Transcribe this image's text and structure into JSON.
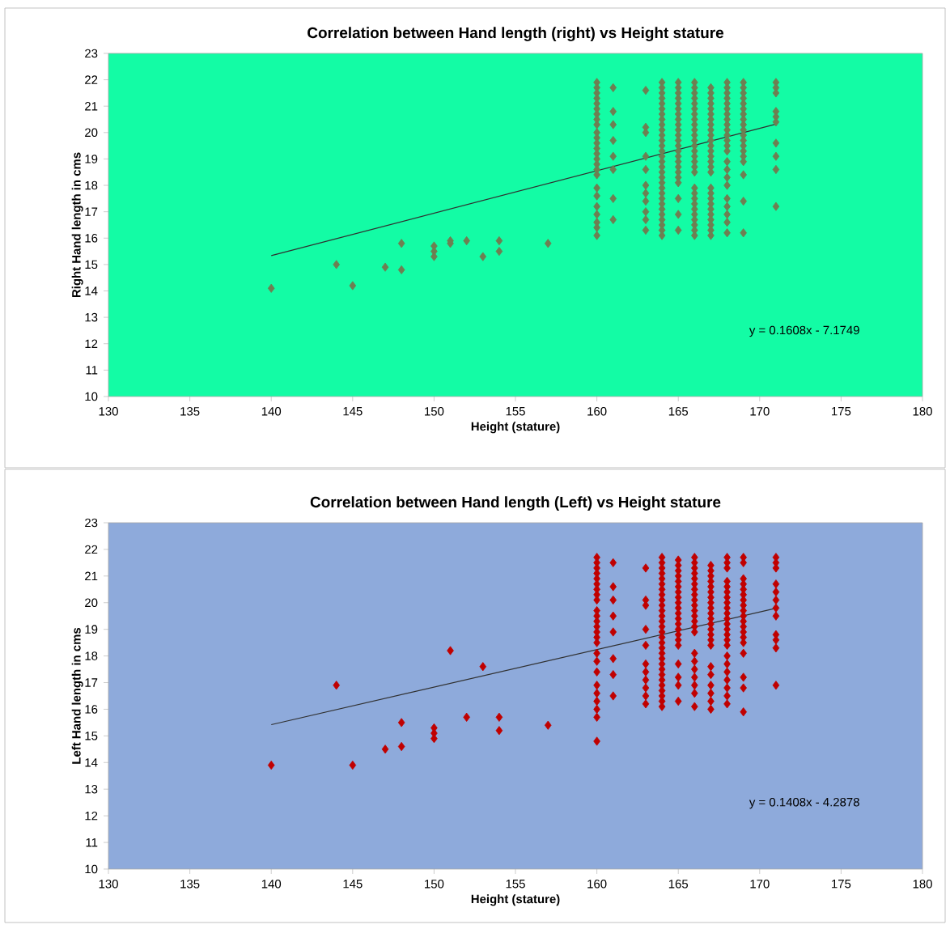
{
  "chart_data": [
    {
      "type": "scatter",
      "title": "Correlation between Hand length (right) vs Height stature",
      "xlabel": "Height (stature)",
      "ylabel": "Right Hand length in cms",
      "xlim": [
        130,
        180
      ],
      "xticks": [
        130,
        135,
        140,
        145,
        150,
        155,
        160,
        165,
        170,
        175,
        180
      ],
      "ylim": [
        10,
        23
      ],
      "yticks": [
        10,
        11,
        12,
        13,
        14,
        15,
        16,
        17,
        18,
        19,
        20,
        21,
        22,
        23
      ],
      "marker": "diamond",
      "grid": false,
      "annotations": [
        "y = 0.1608x - 7.1749"
      ],
      "series": [
        {
          "color": "#6e7f52",
          "x": [
            140,
            144,
            145,
            147,
            148,
            148,
            150,
            150,
            150,
            151,
            151,
            152,
            153,
            154,
            154,
            157
          ],
          "values": [
            14.1,
            15.0,
            14.2,
            14.9,
            15.8,
            14.8,
            15.7,
            15.5,
            15.3,
            15.9,
            15.8,
            15.9,
            15.3,
            15.9,
            15.5,
            15.8
          ]
        },
        {
          "color": "#6e7f52",
          "x": [
            160,
            160,
            160,
            160,
            160,
            160,
            160,
            160,
            160,
            160,
            160,
            160,
            160,
            160,
            160,
            160,
            160,
            160,
            160,
            160,
            160,
            160,
            160,
            160,
            160
          ],
          "values": [
            21.9,
            21.7,
            21.5,
            21.3,
            21.1,
            20.9,
            20.7,
            20.5,
            20.3,
            20.0,
            19.8,
            19.6,
            19.4,
            19.2,
            19.0,
            18.8,
            18.6,
            18.4,
            17.9,
            17.6,
            17.2,
            16.9,
            16.6,
            16.4,
            16.1
          ]
        },
        {
          "color": "#6e7f52",
          "x": [
            161,
            161,
            161,
            161,
            161,
            161,
            161,
            161
          ],
          "values": [
            21.7,
            20.8,
            20.3,
            19.7,
            19.1,
            18.6,
            17.5,
            16.7
          ]
        },
        {
          "color": "#6e7f52",
          "x": [
            163,
            163,
            163,
            163,
            163,
            163,
            163,
            163,
            163,
            163,
            163
          ],
          "values": [
            21.6,
            20.2,
            20.0,
            19.1,
            18.6,
            18.0,
            17.7,
            17.4,
            17.0,
            16.7,
            16.3
          ]
        },
        {
          "color": "#6e7f52",
          "x": [
            164,
            164,
            164,
            164,
            164,
            164,
            164,
            164,
            164,
            164,
            164,
            164,
            164,
            164,
            164,
            164,
            164,
            164,
            164,
            164,
            164,
            164,
            164,
            164,
            164,
            164,
            164,
            164,
            164,
            164
          ],
          "values": [
            21.9,
            21.7,
            21.5,
            21.3,
            21.1,
            20.9,
            20.7,
            20.5,
            20.3,
            20.1,
            19.9,
            19.7,
            19.5,
            19.3,
            19.1,
            18.9,
            18.7,
            18.5,
            18.3,
            18.1,
            17.9,
            17.7,
            17.5,
            17.3,
            17.1,
            16.9,
            16.7,
            16.5,
            16.3,
            16.1
          ]
        },
        {
          "color": "#6e7f52",
          "x": [
            165,
            165,
            165,
            165,
            165,
            165,
            165,
            165,
            165,
            165,
            165,
            165,
            165,
            165,
            165,
            165,
            165,
            165,
            165,
            165,
            165,
            165,
            165
          ],
          "values": [
            21.9,
            21.7,
            21.5,
            21.3,
            21.1,
            20.9,
            20.7,
            20.5,
            20.3,
            20.1,
            19.9,
            19.7,
            19.5,
            19.3,
            19.1,
            18.9,
            18.7,
            18.5,
            18.3,
            18.1,
            17.5,
            16.9,
            16.3
          ]
        },
        {
          "color": "#6e7f52",
          "x": [
            166,
            166,
            166,
            166,
            166,
            166,
            166,
            166,
            166,
            166,
            166,
            166,
            166,
            166,
            166,
            166,
            166,
            166,
            166,
            166,
            166,
            166,
            166,
            166,
            166,
            166,
            166,
            166
          ],
          "values": [
            21.9,
            21.7,
            21.5,
            21.3,
            21.1,
            20.9,
            20.7,
            20.5,
            20.3,
            20.1,
            19.9,
            19.7,
            19.5,
            19.3,
            19.1,
            18.9,
            18.7,
            18.5,
            17.9,
            17.7,
            17.5,
            17.3,
            17.1,
            16.9,
            16.7,
            16.5,
            16.3,
            16.1
          ]
        },
        {
          "color": "#6e7f52",
          "x": [
            167,
            167,
            167,
            167,
            167,
            167,
            167,
            167,
            167,
            167,
            167,
            167,
            167,
            167,
            167,
            167,
            167,
            167,
            167,
            167,
            167,
            167,
            167,
            167,
            167,
            167,
            167
          ],
          "values": [
            21.7,
            21.5,
            21.3,
            21.1,
            20.9,
            20.7,
            20.5,
            20.3,
            20.1,
            19.9,
            19.7,
            19.5,
            19.3,
            19.1,
            18.9,
            18.7,
            18.5,
            17.9,
            17.7,
            17.5,
            17.3,
            17.1,
            16.9,
            16.7,
            16.5,
            16.3,
            16.1
          ]
        },
        {
          "color": "#6e7f52",
          "x": [
            168,
            168,
            168,
            168,
            168,
            168,
            168,
            168,
            168,
            168,
            168,
            168,
            168,
            168,
            168,
            168,
            168,
            168,
            168,
            168,
            168,
            168,
            168
          ],
          "values": [
            21.9,
            21.7,
            21.5,
            21.3,
            21.1,
            20.9,
            20.7,
            20.5,
            20.3,
            20.1,
            19.9,
            19.7,
            19.5,
            19.3,
            18.9,
            18.6,
            18.3,
            18.0,
            17.5,
            17.2,
            16.9,
            16.6,
            16.2
          ]
        },
        {
          "color": "#6e7f52",
          "x": [
            169,
            169,
            169,
            169,
            169,
            169,
            169,
            169,
            169,
            169,
            169,
            169,
            169,
            169,
            169,
            169,
            169,
            169,
            169
          ],
          "values": [
            21.9,
            21.7,
            21.5,
            21.3,
            21.1,
            20.9,
            20.7,
            20.5,
            20.3,
            20.1,
            19.9,
            19.7,
            19.5,
            19.3,
            19.1,
            18.9,
            18.4,
            17.4,
            16.2
          ]
        },
        {
          "color": "#6e7f52",
          "x": [
            171,
            171,
            171,
            171,
            171,
            171,
            171,
            171,
            171,
            171
          ],
          "values": [
            21.9,
            21.7,
            21.5,
            20.8,
            20.6,
            20.4,
            19.6,
            19.1,
            18.6,
            17.2
          ]
        },
        {
          "type": "line",
          "marker": "none",
          "color": "#303030",
          "x": [
            140,
            171
          ],
          "values": [
            15.34,
            20.32
          ]
        }
      ]
    },
    {
      "type": "scatter",
      "title": "Correlation between Hand length (Left) vs Height stature",
      "xlabel": "Height (stature)",
      "ylabel": "Left Hand length in cms",
      "xlim": [
        130,
        180
      ],
      "xticks": [
        130,
        135,
        140,
        145,
        150,
        155,
        160,
        165,
        170,
        175,
        180
      ],
      "ylim": [
        10,
        23
      ],
      "yticks": [
        10,
        11,
        12,
        13,
        14,
        15,
        16,
        17,
        18,
        19,
        20,
        21,
        22,
        23
      ],
      "marker": "diamond",
      "grid": false,
      "annotations": [
        "y = 0.1408x - 4.2878"
      ],
      "series": [
        {
          "color": "#c00000",
          "x": [
            140,
            144,
            145,
            147,
            148,
            148,
            150,
            150,
            150,
            151,
            152,
            153,
            154,
            154,
            157
          ],
          "values": [
            13.9,
            16.9,
            13.9,
            14.5,
            14.6,
            15.5,
            15.3,
            15.1,
            14.9,
            18.2,
            15.7,
            17.6,
            15.7,
            15.2,
            15.4
          ]
        },
        {
          "color": "#c00000",
          "x": [
            160,
            160,
            160,
            160,
            160,
            160,
            160,
            160,
            160,
            160,
            160,
            160,
            160,
            160,
            160,
            160,
            160,
            160,
            160,
            160,
            160,
            160,
            160,
            160,
            160
          ],
          "values": [
            21.7,
            21.5,
            21.3,
            21.1,
            20.9,
            20.7,
            20.5,
            20.3,
            20.1,
            19.7,
            19.5,
            19.3,
            19.1,
            18.9,
            18.7,
            18.5,
            18.1,
            17.8,
            17.4,
            16.9,
            16.6,
            16.3,
            16.0,
            15.7,
            14.8
          ]
        },
        {
          "color": "#c00000",
          "x": [
            161,
            161,
            161,
            161,
            161,
            161,
            161,
            161
          ],
          "values": [
            21.5,
            20.6,
            20.1,
            19.5,
            18.9,
            17.9,
            17.3,
            16.5
          ]
        },
        {
          "color": "#c00000",
          "x": [
            163,
            163,
            163,
            163,
            163,
            163,
            163,
            163,
            163,
            163,
            163
          ],
          "values": [
            21.3,
            20.1,
            19.9,
            19.0,
            18.4,
            17.7,
            17.4,
            17.1,
            16.8,
            16.5,
            16.2
          ]
        },
        {
          "color": "#c00000",
          "x": [
            164,
            164,
            164,
            164,
            164,
            164,
            164,
            164,
            164,
            164,
            164,
            164,
            164,
            164,
            164,
            164,
            164,
            164,
            164,
            164,
            164,
            164,
            164,
            164,
            164,
            164,
            164,
            164,
            164
          ],
          "values": [
            21.7,
            21.5,
            21.3,
            21.1,
            20.9,
            20.7,
            20.5,
            20.3,
            20.1,
            19.9,
            19.7,
            19.5,
            19.3,
            19.1,
            18.9,
            18.7,
            18.5,
            18.3,
            18.1,
            17.9,
            17.7,
            17.5,
            17.3,
            17.1,
            16.9,
            16.7,
            16.5,
            16.3,
            16.1
          ]
        },
        {
          "color": "#c00000",
          "x": [
            165,
            165,
            165,
            165,
            165,
            165,
            165,
            165,
            165,
            165,
            165,
            165,
            165,
            165,
            165,
            165,
            165,
            165,
            165,
            165,
            165
          ],
          "values": [
            21.6,
            21.4,
            21.2,
            21.0,
            20.8,
            20.6,
            20.4,
            20.2,
            20.0,
            19.8,
            19.6,
            19.4,
            19.2,
            19.0,
            18.8,
            18.6,
            18.4,
            17.7,
            17.2,
            16.9,
            16.3
          ]
        },
        {
          "color": "#c00000",
          "x": [
            166,
            166,
            166,
            166,
            166,
            166,
            166,
            166,
            166,
            166,
            166,
            166,
            166,
            166,
            166,
            166,
            166,
            166,
            166,
            166,
            166,
            166
          ],
          "values": [
            21.7,
            21.5,
            21.3,
            21.1,
            20.9,
            20.7,
            20.5,
            20.3,
            20.1,
            19.9,
            19.7,
            19.5,
            19.3,
            19.1,
            18.9,
            18.1,
            17.8,
            17.5,
            17.2,
            16.9,
            16.6,
            16.1
          ]
        },
        {
          "color": "#c00000",
          "x": [
            167,
            167,
            167,
            167,
            167,
            167,
            167,
            167,
            167,
            167,
            167,
            167,
            167,
            167,
            167,
            167,
            167,
            167,
            167,
            167,
            167,
            167
          ],
          "values": [
            21.4,
            21.2,
            21.0,
            20.8,
            20.6,
            20.4,
            20.2,
            20.0,
            19.8,
            19.6,
            19.4,
            19.2,
            19.0,
            18.8,
            18.6,
            18.4,
            17.6,
            17.3,
            16.9,
            16.6,
            16.3,
            16.0
          ]
        },
        {
          "color": "#c00000",
          "x": [
            168,
            168,
            168,
            168,
            168,
            168,
            168,
            168,
            168,
            168,
            168,
            168,
            168,
            168,
            168,
            168,
            168,
            168,
            168,
            168,
            168,
            168,
            168
          ],
          "values": [
            21.7,
            21.5,
            21.3,
            20.8,
            20.6,
            20.4,
            20.2,
            20.0,
            19.8,
            19.6,
            19.4,
            19.2,
            19.0,
            18.8,
            18.6,
            18.4,
            18.0,
            17.7,
            17.4,
            17.1,
            16.8,
            16.5,
            16.2
          ]
        },
        {
          "color": "#c00000",
          "x": [
            169,
            169,
            169,
            169,
            169,
            169,
            169,
            169,
            169,
            169,
            169,
            169,
            169,
            169,
            169,
            169,
            169,
            169,
            169
          ],
          "values": [
            21.7,
            21.5,
            20.9,
            20.7,
            20.5,
            20.3,
            20.1,
            19.9,
            19.7,
            19.5,
            19.3,
            19.1,
            18.9,
            18.7,
            18.5,
            18.1,
            17.2,
            16.8,
            15.9
          ]
        },
        {
          "color": "#c00000",
          "x": [
            171,
            171,
            171,
            171,
            171,
            171,
            171,
            171,
            171,
            171,
            171,
            171
          ],
          "values": [
            21.7,
            21.5,
            21.3,
            20.7,
            20.4,
            20.1,
            19.8,
            19.5,
            18.8,
            18.6,
            18.3,
            16.9
          ]
        },
        {
          "type": "line",
          "marker": "none",
          "color": "#303030",
          "x": [
            140,
            171
          ],
          "values": [
            15.42,
            19.79
          ]
        }
      ]
    }
  ]
}
